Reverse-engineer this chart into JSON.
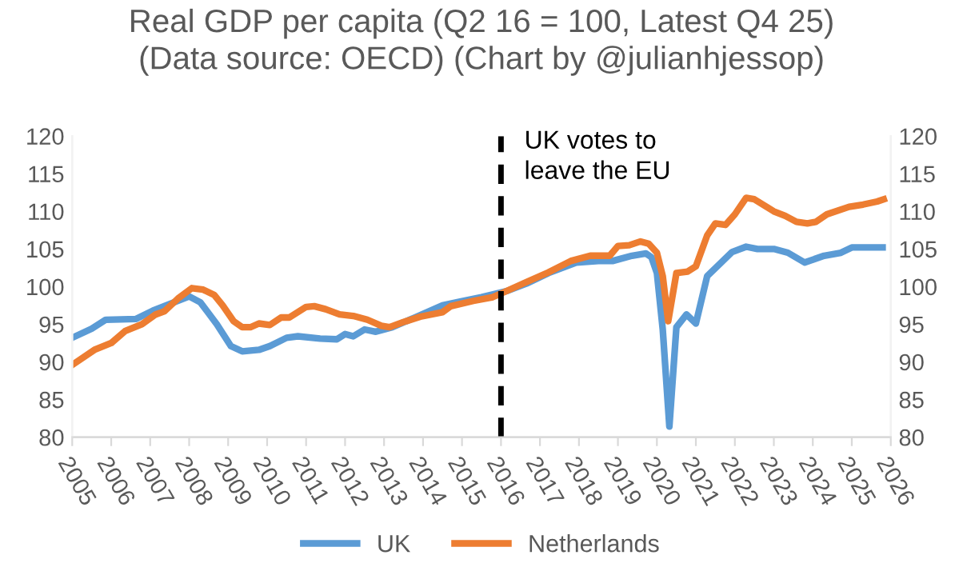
{
  "chart_data": {
    "type": "line",
    "title": "Real GDP per capita (Q2 16 = 100, Latest Q4 25)\n(Data source: OECD) (Chart by @julianhjessop)",
    "series": [
      {
        "name": "UK",
        "color": "#5b9bd5",
        "x": [
          2005.0,
          2005.5,
          2005.86,
          2006.64,
          2007.07,
          2008.0,
          2008.29,
          2008.71,
          2009.07,
          2009.36,
          2009.79,
          2010.07,
          2010.5,
          2010.79,
          2011.36,
          2011.79,
          2012.0,
          2012.21,
          2012.5,
          2012.79,
          2013.21,
          2013.79,
          2014.5,
          2014.93,
          2015.5,
          2016.14,
          2016.65,
          2017.22,
          2017.93,
          2018.5,
          2018.86,
          2019.36,
          2019.72,
          2019.86,
          2020.0,
          2020.15,
          2020.32,
          2020.5,
          2020.76,
          2021.0,
          2021.29,
          2021.65,
          2021.93,
          2022.29,
          2022.58,
          2023.0,
          2023.36,
          2023.79,
          2024.29,
          2024.72,
          2025.0,
          2025.79
        ],
        "values": [
          93.2,
          94.4,
          95.6,
          95.7,
          96.8,
          98.7,
          97.9,
          95.0,
          92.1,
          91.4,
          91.6,
          92.1,
          93.2,
          93.4,
          93.1,
          93.0,
          93.7,
          93.4,
          94.3,
          94.0,
          94.6,
          95.9,
          97.5,
          98.0,
          98.6,
          99.4,
          100.4,
          101.8,
          103.2,
          103.4,
          103.4,
          104.1,
          104.4,
          103.9,
          101.8,
          94.3,
          81.4,
          94.6,
          96.3,
          95.1,
          101.4,
          103.2,
          104.6,
          105.3,
          105.0,
          105.0,
          104.5,
          103.2,
          104.1,
          104.5,
          105.2,
          105.2
        ]
      },
      {
        "name": "Netherlands",
        "color": "#ed7d31",
        "x": [
          2005.0,
          2005.57,
          2006.0,
          2006.36,
          2006.79,
          2007.14,
          2007.36,
          2007.71,
          2008.07,
          2008.36,
          2008.64,
          2008.86,
          2009.14,
          2009.36,
          2009.57,
          2009.79,
          2010.07,
          2010.36,
          2010.57,
          2011.0,
          2011.21,
          2011.5,
          2011.86,
          2012.21,
          2012.57,
          2012.93,
          2013.14,
          2013.5,
          2013.93,
          2014.5,
          2014.71,
          2015.29,
          2015.79,
          2016.14,
          2016.65,
          2017.22,
          2017.79,
          2018.29,
          2018.79,
          2019.0,
          2019.29,
          2019.58,
          2019.79,
          2020.0,
          2020.15,
          2020.29,
          2020.5,
          2020.79,
          2021.0,
          2021.29,
          2021.5,
          2021.76,
          2022.0,
          2022.29,
          2022.5,
          2023.0,
          2023.29,
          2023.58,
          2023.86,
          2024.08,
          2024.36,
          2024.93,
          2025.29,
          2025.65,
          2025.82
        ],
        "values": [
          89.6,
          91.6,
          92.5,
          94.1,
          95.0,
          96.3,
          96.7,
          98.4,
          99.8,
          99.6,
          98.9,
          97.5,
          95.4,
          94.6,
          94.6,
          95.1,
          94.9,
          95.9,
          95.9,
          97.3,
          97.4,
          97.0,
          96.3,
          96.1,
          95.6,
          94.8,
          94.6,
          95.3,
          96.0,
          96.6,
          97.4,
          98.1,
          98.6,
          99.4,
          100.6,
          101.9,
          103.4,
          104.1,
          104.1,
          105.4,
          105.5,
          106.0,
          105.7,
          104.5,
          101.4,
          95.4,
          101.8,
          102.0,
          102.7,
          106.8,
          108.4,
          108.2,
          109.6,
          111.8,
          111.6,
          110.0,
          109.4,
          108.6,
          108.4,
          108.6,
          109.6,
          110.6,
          110.9,
          111.3,
          111.6
        ]
      }
    ],
    "xlim": [
      2005,
      2026
    ],
    "xticks": [
      2005,
      2006,
      2007,
      2008,
      2009,
      2010,
      2011,
      2012,
      2013,
      2014,
      2015,
      2016,
      2017,
      2018,
      2019,
      2020,
      2021,
      2022,
      2023,
      2024,
      2025,
      2026
    ],
    "ylim": [
      80,
      120
    ],
    "yticks": [
      80,
      85,
      90,
      95,
      100,
      105,
      110,
      115,
      120
    ],
    "y2lim": [
      80,
      120
    ],
    "y2ticks": [
      80,
      85,
      90,
      95,
      100,
      105,
      110,
      115,
      120
    ],
    "ref_lines": [
      {
        "axis": "x",
        "value": 2016,
        "label": "UK votes to\nleave the EU",
        "color": "#000000",
        "line_style": "dashed"
      }
    ],
    "legend": "bottom",
    "grid": false,
    "marker": "none",
    "line_style": "solid"
  }
}
